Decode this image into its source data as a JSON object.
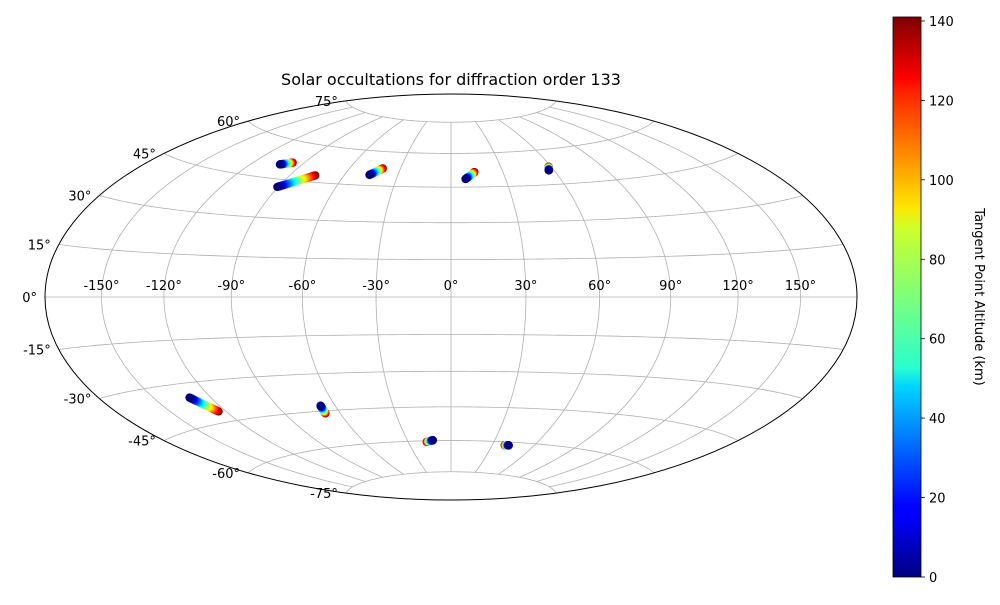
{
  "chart_data": {
    "type": "scatter",
    "projection": "hammer-aitoff",
    "title": "Solar occultations for diffraction order 133",
    "lon_ticks": [
      "-150°",
      "-120°",
      "-90°",
      "-60°",
      "-30°",
      "0°",
      "30°",
      "60°",
      "90°",
      "120°",
      "150°"
    ],
    "lat_ticks": [
      "75°",
      "60°",
      "45°",
      "30°",
      "15°",
      "0°",
      "-15°",
      "-30°",
      "-45°",
      "-60°",
      "-75°"
    ],
    "grid": true,
    "colorbar": {
      "label": "Tangent Point Altitude (km)",
      "colormap": "jet",
      "range": [
        0,
        141
      ],
      "ticks": [
        "0",
        "20",
        "40",
        "60",
        "80",
        "100",
        "120",
        "140"
      ],
      "placement": "right"
    },
    "occultations": [
      {
        "lon": [
          -103.0,
          -97.0
        ],
        "lat": [
          50.5,
          51.8
        ],
        "alt_low_end": "start"
      },
      {
        "lon": [
          -90.5,
          -76.0
        ],
        "lat": [
          42.0,
          47.8
        ],
        "alt_low_end": "start"
      },
      {
        "lon": [
          -46.0,
          -40.5
        ],
        "lat": [
          49.5,
          52.5
        ],
        "alt_low_end": "start"
      },
      {
        "lon": [
          8.0,
          13.5
        ],
        "lat": [
          48.5,
          51.5
        ],
        "alt_low_end": "start"
      },
      {
        "lon": [
          57.0,
          58.5
        ],
        "lat": [
          51.0,
          52.5
        ],
        "alt_low_end": "start"
      },
      {
        "lon": [
          -131.0,
          -124.0
        ],
        "lat": [
          -35.0,
          -41.0
        ],
        "alt_low_end": "start"
      },
      {
        "lon": [
          -67.5,
          -68.0
        ],
        "lat": [
          -42.8,
          -46.0
        ],
        "alt_low_end": "start"
      },
      {
        "lon": [
          -12.5,
          -17.0
        ],
        "lat": [
          -59.8,
          -60.5
        ],
        "alt_low_end": "start"
      },
      {
        "lon": [
          42.0,
          39.0
        ],
        "lat": [
          -61.5,
          -61.5
        ],
        "alt_low_end": "start"
      }
    ]
  }
}
